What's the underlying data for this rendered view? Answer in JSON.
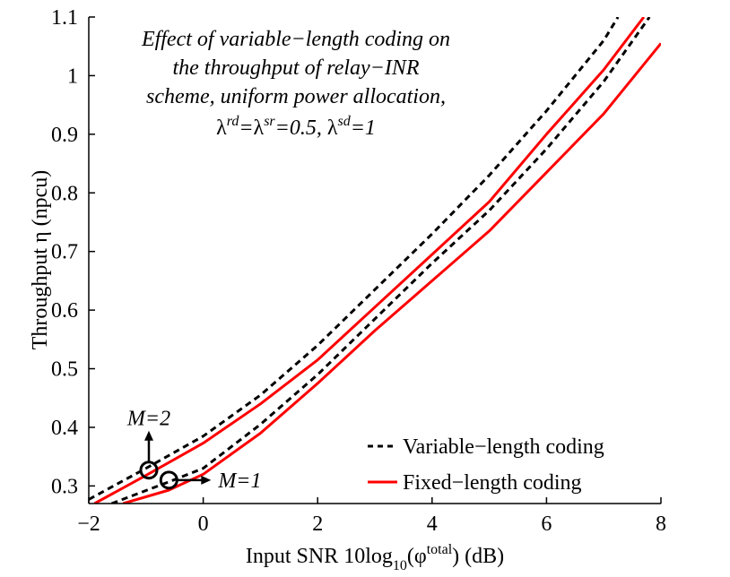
{
  "chart_data": {
    "type": "line",
    "title_lines": [
      "Effect of variable−length coding on",
      "the throughput of relay−INR",
      "scheme, uniform power allocation,"
    ],
    "title_param": {
      "lam": "λ",
      "rd": "rd",
      "sr": "sr",
      "sd": "sd",
      "eq": "=",
      "v1": "=0.5, ",
      "v2": "=1"
    },
    "xlabel": {
      "prefix": "Input SNR 10log",
      "sub": "10",
      "mid": "(φ",
      "sup": "total",
      "suffix": ") (dB)"
    },
    "ylabel": "Throughput η (npcu)",
    "xlim": [
      -2,
      8
    ],
    "ylim": [
      0.27,
      1.1
    ],
    "xticks": [
      -2,
      0,
      2,
      4,
      6,
      8
    ],
    "xtick_labels": [
      "−2",
      "0",
      "2",
      "4",
      "6",
      "8"
    ],
    "yticks": [
      0.3,
      0.4,
      0.5,
      0.6,
      0.7,
      0.8,
      0.9,
      1.0,
      1.1
    ],
    "ytick_labels": [
      "0.3",
      "0.4",
      "0.5",
      "0.6",
      "0.7",
      "0.8",
      "0.9",
      "1",
      "1.1"
    ],
    "grid": false,
    "legend": {
      "position": "bottom-right",
      "entries": [
        "Variable−length coding",
        "Fixed−length coding"
      ]
    },
    "colors": {
      "variable": "#000000",
      "fixed": "#ff0000"
    },
    "series": [
      {
        "name": "Variable−length coding",
        "group": "M=2",
        "style": "dashed",
        "color": "#000000",
        "x": [
          -2,
          -1,
          0,
          1,
          2,
          3,
          4,
          5,
          6,
          7,
          7.25
        ],
        "y": [
          0.277,
          0.33,
          0.385,
          0.455,
          0.54,
          0.635,
          0.73,
          0.83,
          0.94,
          1.06,
          1.1
        ]
      },
      {
        "name": "Variable−length coding",
        "group": "M=1",
        "style": "dashed",
        "color": "#000000",
        "x": [
          -1.6,
          -0.6,
          0,
          1,
          2,
          3,
          4,
          5,
          6,
          7,
          7.8
        ],
        "y": [
          0.27,
          0.307,
          0.33,
          0.405,
          0.49,
          0.585,
          0.68,
          0.77,
          0.875,
          0.99,
          1.1
        ]
      },
      {
        "name": "Fixed−length coding",
        "group": "M=2",
        "style": "solid",
        "color": "#ff0000",
        "x": [
          -1.9,
          -1,
          0,
          1,
          2,
          3,
          4,
          5,
          6,
          7,
          7.7
        ],
        "y": [
          0.27,
          0.318,
          0.373,
          0.44,
          0.515,
          0.605,
          0.695,
          0.785,
          0.9,
          1.01,
          1.1
        ]
      },
      {
        "name": "Fixed−length coding",
        "group": "M=1",
        "style": "solid",
        "color": "#ff0000",
        "x": [
          -1.4,
          -0.6,
          0,
          1,
          2,
          3,
          4,
          5,
          6,
          7,
          8
        ],
        "y": [
          0.27,
          0.293,
          0.32,
          0.39,
          0.475,
          0.565,
          0.65,
          0.735,
          0.835,
          0.935,
          1.055
        ]
      }
    ],
    "annotations": [
      {
        "text": "M=2",
        "circle": [
          -0.95,
          0.327
        ],
        "arrow": "up"
      },
      {
        "text": "M=1",
        "circle": [
          -0.6,
          0.31
        ],
        "arrow": "right"
      }
    ]
  }
}
